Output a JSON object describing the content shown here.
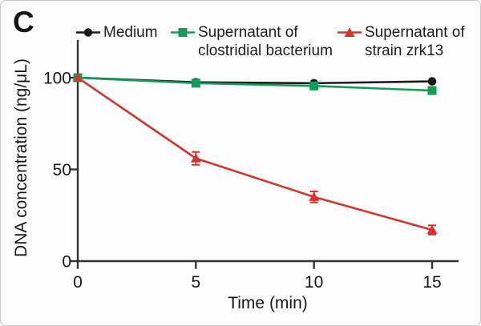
{
  "panel_label": "C",
  "colors": {
    "medium": "#1c1c1c",
    "clostridial": "#149a59",
    "zrk13": "#d23530",
    "axis": "#333333",
    "text": "#161616"
  },
  "legend": {
    "items": [
      {
        "name": "Medium",
        "marker": "circle",
        "line1": "Medium",
        "line2": ""
      },
      {
        "name": "Supernatant of clostridial bacterium",
        "marker": "square",
        "line1": "Supernatant of",
        "line2": "clostridial bacterium"
      },
      {
        "name": "Supernatant of strain zrk13",
        "marker": "triangle",
        "line1": "Supernatant of",
        "line2": "strain zrk13"
      }
    ]
  },
  "chart_data": {
    "type": "line",
    "x": [
      0,
      5,
      10,
      15
    ],
    "series": [
      {
        "name": "Medium",
        "marker": "circle",
        "color": "medium",
        "values": [
          100,
          97.5,
          97,
          98
        ],
        "errors": [
          0,
          0,
          0,
          0
        ]
      },
      {
        "name": "Supernatant of clostridial bacterium",
        "marker": "square",
        "color": "clostridial",
        "values": [
          100,
          97,
          95.5,
          93
        ],
        "errors": [
          0,
          0,
          0,
          0
        ]
      },
      {
        "name": "Supernatant of strain zrk13",
        "marker": "triangle",
        "color": "zrk13",
        "values": [
          100,
          56,
          35,
          17
        ],
        "errors": [
          0,
          3.5,
          3,
          2.5
        ]
      }
    ],
    "title": "",
    "xlabel": "Time (min)",
    "ylabel": "DNA concentration (ng/μL)",
    "xticks": [
      0,
      5,
      10,
      15
    ],
    "yticks": [
      0,
      50,
      100
    ],
    "xlim": [
      0,
      16.1
    ],
    "ylim": [
      0,
      121
    ],
    "grid": false,
    "legend_position": "top"
  }
}
